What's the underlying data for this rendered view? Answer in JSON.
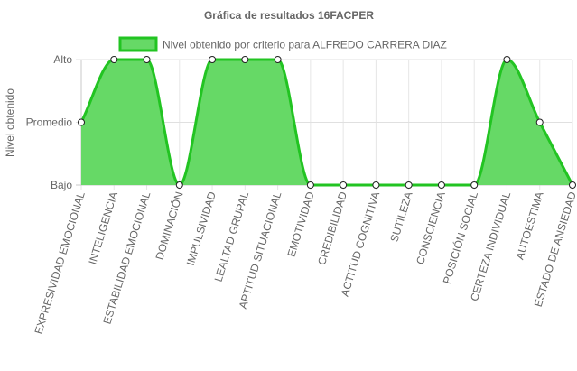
{
  "chart_data": {
    "type": "area",
    "title": "Gráfica de resultados 16FACPER",
    "ylabel": "Nivel obtenido",
    "xlabel": "",
    "y_categories": [
      "Bajo",
      "Promedio",
      "Alto"
    ],
    "ylim": [
      0,
      2
    ],
    "categories": [
      "EXPRESIVIDAD EMOCIONAL",
      "INTELIGENCIA",
      "ESTABILIDAD EMOCIONAL",
      "DOMINACIÓN",
      "IMPULSIVIDAD",
      "LEALTAD GRUPAL",
      "APTITUD SITUACIONAL",
      "EMOTIVIDAD",
      "CREDIBILIDAD",
      "ACTITUD COGNITIVA",
      "SUTILEZA",
      "CONSCIENCIA",
      "POSICIÓN SOCIAL",
      "CERTEZA INDIVIDUAL",
      "AUTOESTIMA",
      "ESTADO DE ANSIEDAD"
    ],
    "series": [
      {
        "name": "Nivel obtenido por criterio para ALFREDO CARRERA DIAZ",
        "values": [
          1,
          2,
          2,
          0,
          2,
          2,
          2,
          0,
          0,
          0,
          0,
          0,
          0,
          2,
          1,
          0
        ],
        "color": "#22c422",
        "fill": "#66d966"
      }
    ],
    "grid": true,
    "legend": "top"
  }
}
